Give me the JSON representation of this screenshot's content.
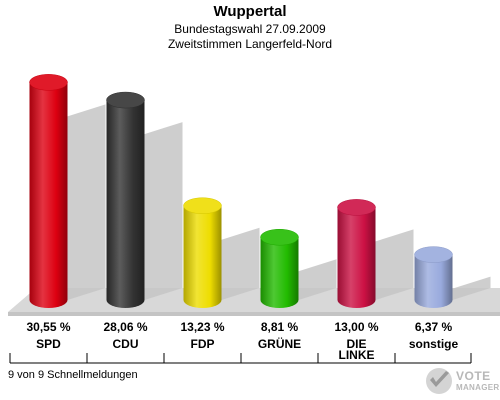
{
  "header": {
    "title": "Wuppertal",
    "subtitle1": "Bundestagswahl 27.09.2009",
    "subtitle2": "Zweitstimmen Langerfeld-Nord"
  },
  "footer": {
    "status": "9 von 9 Schnellmeldungen"
  },
  "brand": {
    "line1": "VOTE",
    "line2": "MANAGER",
    "icon": "vote-manager-logo-icon"
  },
  "chart_data": {
    "type": "bar",
    "title": "Wuppertal",
    "subtitle": "Bundestagswahl 27.09.2009 · Zweitstimmen Langerfeld-Nord",
    "xlabel": "",
    "ylabel": "",
    "ylim": [
      0,
      32
    ],
    "grid": false,
    "legend": "none",
    "categories": [
      "SPD",
      "CDU",
      "FDP",
      "GRÜNE",
      "DIE LINKE",
      "sonstige"
    ],
    "category_lines": [
      [
        "SPD"
      ],
      [
        "CDU"
      ],
      [
        "FDP"
      ],
      [
        "GRÜNE"
      ],
      [
        "DIE",
        "LINKE"
      ],
      [
        "sonstige"
      ]
    ],
    "values": [
      30.55,
      28.06,
      13.23,
      8.81,
      13.0,
      6.37
    ],
    "value_labels": [
      "30,55 %",
      "28,06 %",
      "13,23 %",
      "8,81 %",
      "13,00 %",
      "6,37 %"
    ],
    "colors": [
      "#dd0011",
      "#333333",
      "#eedd00",
      "#22bb00",
      "#cc1144",
      "#99aadd"
    ]
  }
}
